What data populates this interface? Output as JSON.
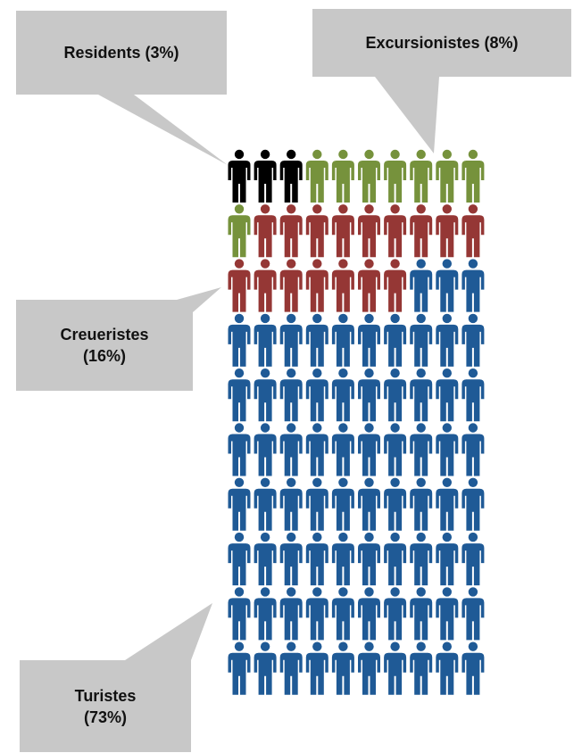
{
  "chart_data": {
    "type": "pictogram",
    "columns": 10,
    "rows": 10,
    "series": [
      {
        "name": "Residents (3%)",
        "label_lines": [
          "Residents (3%)"
        ],
        "value": 3,
        "color": "#000000"
      },
      {
        "name": "Excursionistes (8%)",
        "label_lines": [
          "Excursionistes  (8%)"
        ],
        "value": 8,
        "color": "#76923C"
      },
      {
        "name": "Creueristes (16%)",
        "label_lines": [
          "Creueristes",
          "(16%)"
        ],
        "value": 16,
        "color": "#953735"
      },
      {
        "name": "Turistes (73%)",
        "label_lines": [
          "Turistes",
          "(73%)"
        ],
        "value": 73,
        "color": "#1F5A96"
      }
    ]
  },
  "callout_color": "#C8C8C8"
}
